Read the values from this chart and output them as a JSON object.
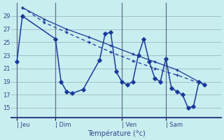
{
  "xlabel": "Température (°c)",
  "background_color": "#c8eef0",
  "grid_color": "#a0b8c0",
  "line_color": "#1a3a9a",
  "vline_color": "#607090",
  "yticks": [
    15,
    17,
    19,
    21,
    23,
    25,
    27,
    29
  ],
  "ylim": [
    13.5,
    31.0
  ],
  "xlim": [
    0,
    38
  ],
  "day_labels": [
    "| Jeu",
    "| Dim",
    "| Ven",
    "| Sam"
  ],
  "day_positions": [
    1,
    8,
    20,
    28
  ],
  "series1_x": [
    1,
    2,
    8,
    9,
    10,
    11,
    13,
    16,
    17,
    18,
    19,
    20,
    21,
    22,
    23,
    24,
    25,
    26,
    27,
    28,
    29,
    30,
    31,
    32,
    33,
    34,
    35
  ],
  "series1_y": [
    22.0,
    29.0,
    25.5,
    19.0,
    17.5,
    17.2,
    17.8,
    22.3,
    26.3,
    26.5,
    20.5,
    19.0,
    18.5,
    19.0,
    23.0,
    25.5,
    22.0,
    19.5,
    19.0,
    22.5,
    18.0,
    17.5,
    17.0,
    15.0,
    15.2,
    19.0,
    18.5
  ],
  "series2_x": [
    2,
    6,
    10,
    14,
    18,
    22,
    26,
    30,
    35
  ],
  "series2_y": [
    30.3,
    28.5,
    27.0,
    25.8,
    24.5,
    23.2,
    22.0,
    20.8,
    18.5
  ],
  "series3_x": [
    2,
    6,
    10,
    14,
    18,
    22,
    26,
    30,
    35
  ],
  "series3_y": [
    30.3,
    28.0,
    26.5,
    25.0,
    23.5,
    22.2,
    21.0,
    20.0,
    18.5
  ],
  "vlines": [
    1,
    8,
    20,
    28
  ]
}
